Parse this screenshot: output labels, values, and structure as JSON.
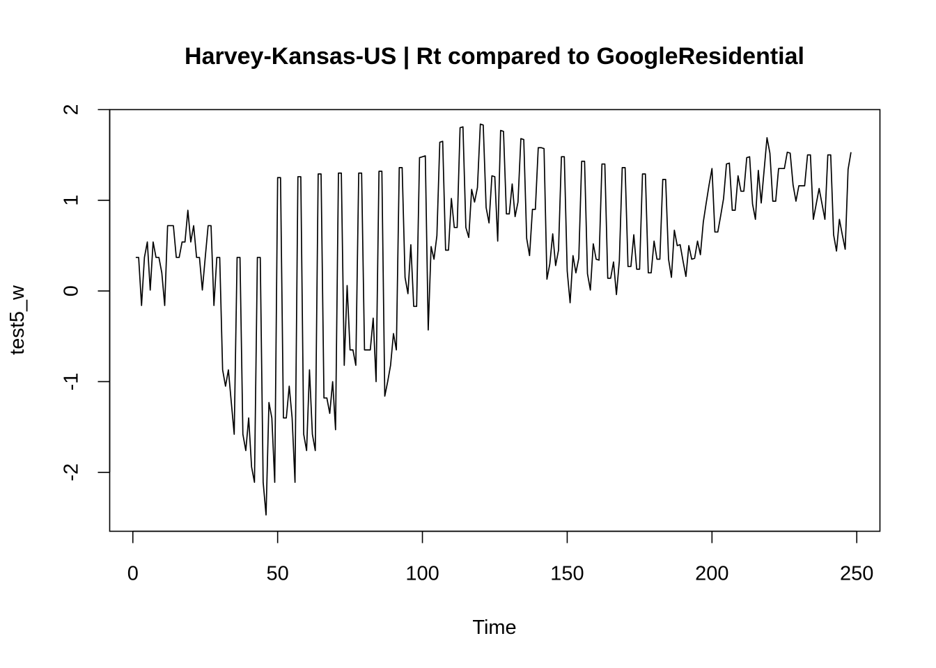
{
  "chart_data": {
    "type": "line",
    "title": "Harvey-Kansas-US | Rt compared to GoogleResidential",
    "xlabel": "Time",
    "ylabel": "test5_w",
    "xlim": [
      -8,
      258
    ],
    "ylim": [
      -2.65,
      2.0
    ],
    "x_ticks": [
      0,
      50,
      100,
      150,
      200,
      250
    ],
    "y_ticks": [
      -2,
      -1,
      0,
      1,
      2
    ],
    "grid": false,
    "legend": "none",
    "line_color": "#000000",
    "series": [
      {
        "x_start": 1,
        "values": [
          0.37,
          0.37,
          -0.16,
          0.37,
          0.54,
          0.01,
          0.54,
          0.37,
          0.37,
          0.2,
          -0.16,
          0.72,
          0.72,
          0.72,
          0.37,
          0.37,
          0.54,
          0.54,
          0.89,
          0.54,
          0.72,
          0.37,
          0.37,
          0.01,
          0.37,
          0.72,
          0.72,
          -0.16,
          0.37,
          0.37,
          -0.87,
          -1.05,
          -0.87,
          -1.23,
          -1.58,
          0.37,
          0.37,
          -1.58,
          -1.76,
          -1.4,
          -1.94,
          -2.11,
          0.37,
          0.37,
          -2.11,
          -2.47,
          -1.23,
          -1.4,
          -2.11,
          1.25,
          1.25,
          -1.4,
          -1.4,
          -1.05,
          -1.4,
          -2.11,
          1.26,
          1.26,
          -1.58,
          -1.76,
          -0.87,
          -1.58,
          -1.76,
          1.29,
          1.29,
          -1.18,
          -1.18,
          -1.35,
          -1.0,
          -1.53,
          1.3,
          1.3,
          -0.82,
          0.06,
          -0.65,
          -0.65,
          -0.82,
          1.3,
          1.3,
          -0.65,
          -0.65,
          -0.65,
          -0.3,
          -1.0,
          1.32,
          1.32,
          -1.16,
          -1.0,
          -0.82,
          -0.47,
          -0.65,
          1.36,
          1.36,
          0.15,
          -0.03,
          0.51,
          -0.17,
          -0.17,
          1.47,
          1.48,
          1.49,
          -0.43,
          0.49,
          0.35,
          0.61,
          1.64,
          1.65,
          0.45,
          0.45,
          1.02,
          0.7,
          0.7,
          1.8,
          1.81,
          0.7,
          0.59,
          1.12,
          0.98,
          1.14,
          1.84,
          1.83,
          0.92,
          0.75,
          1.27,
          1.26,
          0.55,
          1.77,
          1.76,
          0.85,
          0.85,
          1.18,
          0.82,
          0.98,
          1.68,
          1.67,
          0.58,
          0.39,
          0.9,
          0.9,
          1.58,
          1.58,
          1.57,
          0.13,
          0.3,
          0.63,
          0.28,
          0.45,
          1.48,
          1.48,
          0.22,
          -0.13,
          0.39,
          0.2,
          0.36,
          1.43,
          1.43,
          0.19,
          0.01,
          0.52,
          0.35,
          0.34,
          1.4,
          1.4,
          0.14,
          0.14,
          0.32,
          -0.04,
          0.33,
          1.36,
          1.36,
          0.27,
          0.27,
          0.62,
          0.24,
          0.24,
          1.29,
          1.29,
          0.2,
          0.2,
          0.55,
          0.35,
          0.35,
          1.23,
          1.23,
          0.35,
          0.15,
          0.67,
          0.5,
          0.51,
          0.33,
          0.16,
          0.5,
          0.35,
          0.36,
          0.55,
          0.4,
          0.76,
          0.97,
          1.17,
          1.35,
          0.65,
          0.65,
          0.83,
          1.02,
          1.4,
          1.41,
          0.89,
          0.89,
          1.27,
          1.1,
          1.1,
          1.47,
          1.48,
          0.96,
          0.79,
          1.33,
          0.97,
          1.33,
          1.69,
          1.52,
          0.99,
          0.99,
          1.35,
          1.35,
          1.35,
          1.53,
          1.52,
          1.17,
          0.99,
          1.16,
          1.16,
          1.16,
          1.5,
          1.5,
          0.79,
          0.96,
          1.13,
          0.96,
          0.79,
          1.5,
          1.5,
          0.62,
          0.44,
          0.79,
          0.62,
          0.46,
          1.34,
          1.53
        ]
      }
    ]
  }
}
